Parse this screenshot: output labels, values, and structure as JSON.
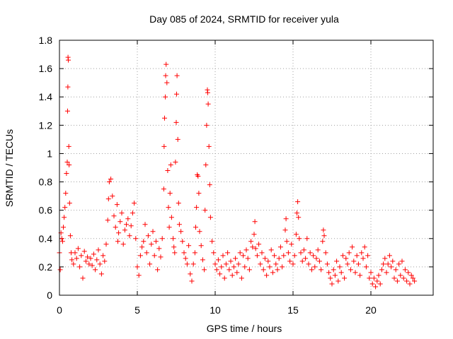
{
  "chart_data": {
    "type": "scatter",
    "title": "Day 085 of 2024, SRMTID for receiver yula",
    "xlabel": "GPS time / hours",
    "ylabel": "SRMTID / TECUs",
    "xlim": [
      0,
      24
    ],
    "ylim": [
      0,
      1.8
    ],
    "xticks": [
      0,
      5,
      10,
      15,
      20
    ],
    "xtick_labels": [
      "0",
      "5",
      "10",
      "15",
      "20"
    ],
    "yticks": [
      0,
      0.2,
      0.4,
      0.6,
      0.8,
      1,
      1.2,
      1.4,
      1.6,
      1.8
    ],
    "ytick_labels": [
      "0",
      "0.2",
      "0.4",
      "0.6",
      "0.8",
      "1",
      "1.2",
      "1.4",
      "1.6",
      "1.8"
    ],
    "grid": true,
    "marker": "+",
    "color": "#ff0000",
    "series": [
      {
        "name": "SRMTID",
        "points": [
          [
            0.0,
            0.3
          ],
          [
            0.05,
            0.18
          ],
          [
            0.1,
            0.44
          ],
          [
            0.15,
            0.4
          ],
          [
            0.2,
            0.38
          ],
          [
            0.25,
            0.48
          ],
          [
            0.3,
            0.55
          ],
          [
            0.35,
            0.62
          ],
          [
            0.4,
            0.72
          ],
          [
            0.45,
            0.86
          ],
          [
            0.5,
            0.94
          ],
          [
            0.52,
            1.3
          ],
          [
            0.54,
            1.47
          ],
          [
            0.55,
            1.68
          ],
          [
            0.57,
            1.66
          ],
          [
            0.6,
            1.05
          ],
          [
            0.62,
            0.92
          ],
          [
            0.65,
            0.65
          ],
          [
            0.7,
            0.42
          ],
          [
            0.75,
            0.3
          ],
          [
            0.8,
            0.25
          ],
          [
            0.9,
            0.22
          ],
          [
            1.0,
            0.3
          ],
          [
            1.1,
            0.26
          ],
          [
            1.2,
            0.33
          ],
          [
            1.3,
            0.2
          ],
          [
            1.4,
            0.28
          ],
          [
            1.5,
            0.12
          ],
          [
            1.6,
            0.31
          ],
          [
            1.7,
            0.24
          ],
          [
            1.8,
            0.27
          ],
          [
            1.9,
            0.22
          ],
          [
            2.0,
            0.26
          ],
          [
            2.1,
            0.21
          ],
          [
            2.2,
            0.29
          ],
          [
            2.3,
            0.18
          ],
          [
            2.4,
            0.25
          ],
          [
            2.5,
            0.32
          ],
          [
            2.6,
            0.22
          ],
          [
            2.7,
            0.15
          ],
          [
            2.8,
            0.28
          ],
          [
            2.9,
            0.24
          ],
          [
            3.0,
            0.36
          ],
          [
            3.1,
            0.53
          ],
          [
            3.15,
            0.68
          ],
          [
            3.2,
            0.8
          ],
          [
            3.3,
            0.82
          ],
          [
            3.4,
            0.7
          ],
          [
            3.5,
            0.56
          ],
          [
            3.6,
            0.48
          ],
          [
            3.7,
            0.64
          ],
          [
            3.75,
            0.38
          ],
          [
            3.8,
            0.44
          ],
          [
            3.9,
            0.52
          ],
          [
            4.0,
            0.58
          ],
          [
            4.1,
            0.36
          ],
          [
            4.2,
            0.46
          ],
          [
            4.3,
            0.5
          ],
          [
            4.4,
            0.54
          ],
          [
            4.5,
            0.42
          ],
          [
            4.6,
            0.49
          ],
          [
            4.7,
            0.58
          ],
          [
            4.8,
            0.65
          ],
          [
            4.9,
            0.4
          ],
          [
            5.0,
            0.2
          ],
          [
            5.1,
            0.14
          ],
          [
            5.2,
            0.28
          ],
          [
            5.3,
            0.34
          ],
          [
            5.4,
            0.38
          ],
          [
            5.5,
            0.5
          ],
          [
            5.6,
            0.3
          ],
          [
            5.7,
            0.42
          ],
          [
            5.8,
            0.22
          ],
          [
            5.9,
            0.36
          ],
          [
            6.0,
            0.45
          ],
          [
            6.1,
            0.28
          ],
          [
            6.2,
            0.38
          ],
          [
            6.3,
            0.18
          ],
          [
            6.4,
            0.33
          ],
          [
            6.5,
            0.27
          ],
          [
            6.6,
            0.4
          ],
          [
            6.7,
            0.75
          ],
          [
            6.72,
            1.05
          ],
          [
            6.75,
            1.25
          ],
          [
            6.8,
            1.4
          ],
          [
            6.82,
            1.55
          ],
          [
            6.85,
            1.63
          ],
          [
            6.9,
            1.5
          ],
          [
            6.95,
            0.88
          ],
          [
            7.0,
            0.62
          ],
          [
            7.05,
            0.48
          ],
          [
            7.1,
            0.72
          ],
          [
            7.15,
            0.92
          ],
          [
            7.2,
            0.55
          ],
          [
            7.3,
            0.4
          ],
          [
            7.35,
            0.34
          ],
          [
            7.4,
            0.3
          ],
          [
            7.45,
            0.94
          ],
          [
            7.5,
            1.22
          ],
          [
            7.52,
            1.42
          ],
          [
            7.55,
            1.55
          ],
          [
            7.6,
            1.1
          ],
          [
            7.65,
            0.65
          ],
          [
            7.7,
            0.5
          ],
          [
            7.8,
            0.45
          ],
          [
            7.9,
            0.38
          ],
          [
            8.0,
            0.3
          ],
          [
            8.1,
            0.26
          ],
          [
            8.2,
            0.22
          ],
          [
            8.3,
            0.35
          ],
          [
            8.4,
            0.15
          ],
          [
            8.5,
            0.1
          ],
          [
            8.6,
            0.22
          ],
          [
            8.7,
            0.3
          ],
          [
            8.75,
            0.48
          ],
          [
            8.8,
            0.62
          ],
          [
            8.85,
            0.85
          ],
          [
            8.9,
            0.84
          ],
          [
            8.95,
            0.72
          ],
          [
            9.0,
            0.45
          ],
          [
            9.1,
            0.35
          ],
          [
            9.2,
            0.25
          ],
          [
            9.3,
            0.18
          ],
          [
            9.35,
            0.6
          ],
          [
            9.4,
            0.92
          ],
          [
            9.45,
            1.2
          ],
          [
            9.5,
            1.45
          ],
          [
            9.52,
            1.43
          ],
          [
            9.55,
            1.35
          ],
          [
            9.6,
            1.05
          ],
          [
            9.65,
            0.78
          ],
          [
            9.7,
            0.55
          ],
          [
            9.8,
            0.38
          ],
          [
            9.9,
            0.3
          ],
          [
            10.0,
            0.22
          ],
          [
            10.1,
            0.18
          ],
          [
            10.2,
            0.25
          ],
          [
            10.3,
            0.15
          ],
          [
            10.4,
            0.2
          ],
          [
            10.5,
            0.28
          ],
          [
            10.6,
            0.12
          ],
          [
            10.7,
            0.22
          ],
          [
            10.8,
            0.3
          ],
          [
            10.9,
            0.18
          ],
          [
            11.0,
            0.24
          ],
          [
            11.1,
            0.14
          ],
          [
            11.2,
            0.2
          ],
          [
            11.3,
            0.26
          ],
          [
            11.4,
            0.16
          ],
          [
            11.5,
            0.22
          ],
          [
            11.6,
            0.3
          ],
          [
            11.7,
            0.12
          ],
          [
            11.8,
            0.28
          ],
          [
            11.9,
            0.2
          ],
          [
            12.0,
            0.32
          ],
          [
            12.1,
            0.26
          ],
          [
            12.2,
            0.18
          ],
          [
            12.3,
            0.38
          ],
          [
            12.4,
            0.34
          ],
          [
            12.5,
            0.43
          ],
          [
            12.55,
            0.52
          ],
          [
            12.6,
            0.33
          ],
          [
            12.7,
            0.28
          ],
          [
            12.8,
            0.36
          ],
          [
            12.9,
            0.22
          ],
          [
            13.0,
            0.3
          ],
          [
            13.1,
            0.18
          ],
          [
            13.2,
            0.26
          ],
          [
            13.3,
            0.14
          ],
          [
            13.4,
            0.24
          ],
          [
            13.5,
            0.2
          ],
          [
            13.6,
            0.32
          ],
          [
            13.7,
            0.16
          ],
          [
            13.8,
            0.28
          ],
          [
            13.9,
            0.22
          ],
          [
            14.0,
            0.18
          ],
          [
            14.1,
            0.26
          ],
          [
            14.2,
            0.34
          ],
          [
            14.3,
            0.2
          ],
          [
            14.4,
            0.28
          ],
          [
            14.5,
            0.46
          ],
          [
            14.55,
            0.54
          ],
          [
            14.6,
            0.38
          ],
          [
            14.7,
            0.3
          ],
          [
            14.8,
            0.24
          ],
          [
            14.9,
            0.36
          ],
          [
            15.0,
            0.22
          ],
          [
            15.1,
            0.28
          ],
          [
            15.2,
            0.43
          ],
          [
            15.25,
            0.58
          ],
          [
            15.3,
            0.66
          ],
          [
            15.35,
            0.55
          ],
          [
            15.4,
            0.4
          ],
          [
            15.5,
            0.3
          ],
          [
            15.6,
            0.24
          ],
          [
            15.7,
            0.32
          ],
          [
            15.8,
            0.26
          ],
          [
            15.9,
            0.4
          ],
          [
            16.0,
            0.22
          ],
          [
            16.1,
            0.3
          ],
          [
            16.2,
            0.18
          ],
          [
            16.3,
            0.28
          ],
          [
            16.4,
            0.2
          ],
          [
            16.5,
            0.26
          ],
          [
            16.6,
            0.32
          ],
          [
            16.7,
            0.24
          ],
          [
            16.8,
            0.18
          ],
          [
            16.9,
            0.38
          ],
          [
            16.95,
            0.46
          ],
          [
            17.0,
            0.42
          ],
          [
            17.1,
            0.3
          ],
          [
            17.2,
            0.22
          ],
          [
            17.3,
            0.16
          ],
          [
            17.4,
            0.12
          ],
          [
            17.5,
            0.08
          ],
          [
            17.6,
            0.18
          ],
          [
            17.7,
            0.14
          ],
          [
            17.8,
            0.24
          ],
          [
            17.9,
            0.1
          ],
          [
            18.0,
            0.2
          ],
          [
            18.1,
            0.16
          ],
          [
            18.2,
            0.28
          ],
          [
            18.3,
            0.12
          ],
          [
            18.4,
            0.26
          ],
          [
            18.5,
            0.22
          ],
          [
            18.6,
            0.3
          ],
          [
            18.7,
            0.18
          ],
          [
            18.8,
            0.34
          ],
          [
            18.9,
            0.24
          ],
          [
            19.0,
            0.16
          ],
          [
            19.1,
            0.28
          ],
          [
            19.2,
            0.22
          ],
          [
            19.3,
            0.14
          ],
          [
            19.4,
            0.3
          ],
          [
            19.5,
            0.26
          ],
          [
            19.6,
            0.34
          ],
          [
            19.7,
            0.2
          ],
          [
            19.8,
            0.28
          ],
          [
            19.9,
            0.12
          ],
          [
            20.0,
            0.16
          ],
          [
            20.1,
            0.08
          ],
          [
            20.2,
            0.12
          ],
          [
            20.3,
            0.06
          ],
          [
            20.4,
            0.1
          ],
          [
            20.5,
            0.14
          ],
          [
            20.6,
            0.08
          ],
          [
            20.7,
            0.18
          ],
          [
            20.8,
            0.22
          ],
          [
            20.9,
            0.26
          ],
          [
            21.0,
            0.16
          ],
          [
            21.1,
            0.22
          ],
          [
            21.2,
            0.28
          ],
          [
            21.3,
            0.2
          ],
          [
            21.4,
            0.24
          ],
          [
            21.5,
            0.12
          ],
          [
            21.6,
            0.18
          ],
          [
            21.7,
            0.1
          ],
          [
            21.8,
            0.22
          ],
          [
            21.9,
            0.14
          ],
          [
            22.0,
            0.24
          ],
          [
            22.1,
            0.12
          ],
          [
            22.2,
            0.18
          ],
          [
            22.3,
            0.1
          ],
          [
            22.4,
            0.16
          ],
          [
            22.5,
            0.08
          ],
          [
            22.6,
            0.14
          ],
          [
            22.7,
            0.12
          ],
          [
            22.8,
            0.1
          ]
        ]
      }
    ]
  }
}
